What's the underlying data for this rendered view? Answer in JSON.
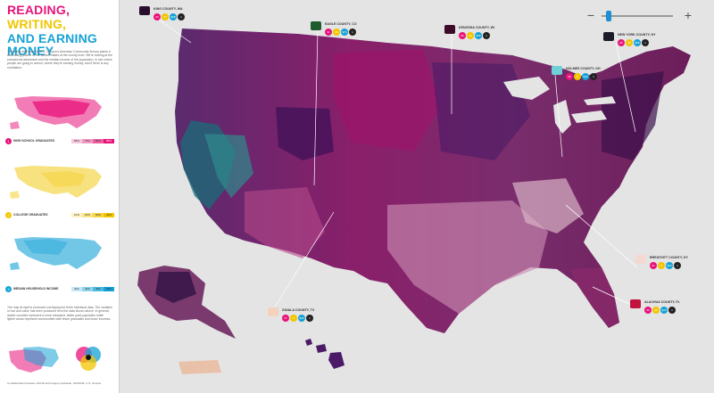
{
  "title": {
    "line1": "READING,",
    "line2": "WRITING,",
    "line3": "AND EARNING MONEY"
  },
  "intro": "The latest data from the U.S. Census's American Community Survey paints a fascinating picture of the United States at the county level. We're looking at the educational attainment and the median income of the population, to see where people are going to school, where they're earning money, and if there is any correlation.",
  "legend": [
    {
      "num": "1",
      "label": "HIGH SCHOOL GRADUATES",
      "values": [
        "65%",
        "75%",
        "85%",
        "95%"
      ],
      "color": "#e8127a"
    },
    {
      "num": "2",
      "label": "COLLEGE GRADUATES",
      "values": [
        "10%",
        "20%",
        "30%",
        "40%"
      ],
      "color": "#f2c500"
    },
    {
      "num": "3",
      "label": "MEDIAN HOUSEHOLD INCOME",
      "values": [
        "$20",
        "$40",
        "$60",
        "$80"
      ],
      "color": "#15a2d6"
    }
  ],
  "outro": "The map at right is produced overlaying the three individual data. The variation in hue and value has been produced from the data shown above. In general, darker counties represent a more educated, better paid population while lighter areas represent communities with fewer graduates and lower incomes.",
  "credits": "A collaboration between GOOD and Gregory Hubacek. SOURCE: U.S. Census",
  "zoom": {
    "minus": "−",
    "plus": "+",
    "level": 0.1
  },
  "colors": {
    "magenta": "#e8127a",
    "yellow": "#f2c500",
    "cyan": "#15a2d6",
    "dark_purple": "#3b1055",
    "map_background": "#e4e4e4"
  },
  "callouts": [
    {
      "name": "KING COUNTY, WA",
      "values": [
        "93",
        "47",
        "$68",
        "1"
      ],
      "color": "#2a0d2e"
    },
    {
      "name": "EAGLE COUNTY, CO",
      "values": [
        "91",
        "49",
        "$71",
        "1"
      ],
      "color": "#1f5c2d"
    },
    {
      "name": "KENOSHA COUNTY, WI",
      "values": [
        "89",
        "23",
        "$58",
        "1"
      ],
      "color": "#3d0b2a"
    },
    {
      "name": "NEW YORK COUNTY, NY",
      "values": [
        "86",
        "58",
        "$68",
        "1"
      ],
      "color": "#1b1b2a"
    },
    {
      "name": "HOLMES COUNTY, OH",
      "values": [
        "56",
        "9",
        "$46",
        "1"
      ],
      "color": "#6fd0d8"
    },
    {
      "name": "BREATHITT COUNTY, KY",
      "values": [
        "61",
        "8",
        "$23",
        "1"
      ],
      "color": "#f3d9cf"
    },
    {
      "name": "ALACHUA COUNTY, FL",
      "values": [
        "90",
        "40",
        "$40",
        "1"
      ],
      "color": "#c4123f"
    },
    {
      "name": "ZAVALA COUNTY, TX",
      "values": [
        "57",
        "9",
        "$25",
        "1"
      ],
      "color": "#f4d2bd"
    }
  ]
}
